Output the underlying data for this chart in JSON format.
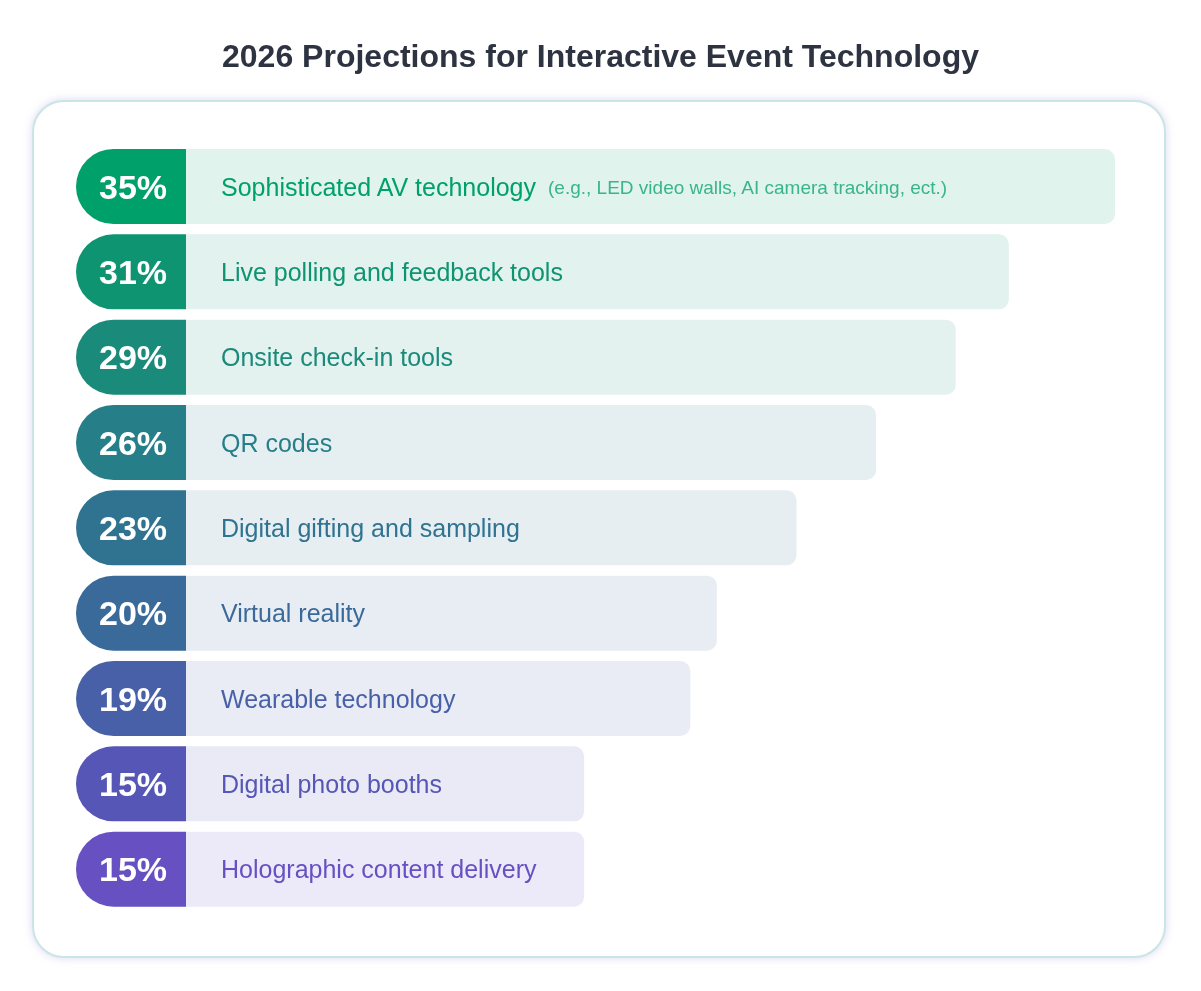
{
  "chart_data": {
    "type": "bar",
    "orientation": "horizontal",
    "title": "2026 Projections for Interactive Event Technology",
    "categories": [
      "Sophisticated AV technology (e.g., LED video walls, AI camera tracking, ect.)",
      "Live polling and feedback tools",
      "Onsite check-in tools",
      "QR codes",
      "Digital gifting and sampling",
      "Virtual reality",
      "Wearable technology",
      "Digital photo booths",
      "Holographic content delivery"
    ],
    "values": [
      35,
      31,
      29,
      26,
      23,
      20,
      19,
      15,
      15
    ],
    "colors": [
      "#00a06a",
      "#0e9470",
      "#1a8a7a",
      "#267e88",
      "#2f7390",
      "#3a6a9a",
      "#4860a8",
      "#5556b5",
      "#6650c2"
    ],
    "data_labels": true,
    "value_labels": [
      "35%",
      "31%",
      "29%",
      "26%",
      "23%",
      "20%",
      "19%",
      "15%",
      "15%"
    ]
  }
}
